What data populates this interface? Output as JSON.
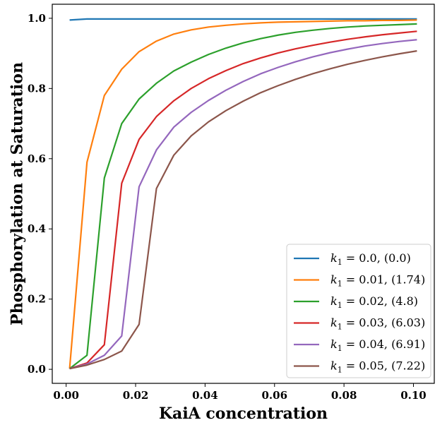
{
  "chart_data": {
    "type": "line",
    "title": "",
    "xlabel": "KaiA concentration",
    "ylabel": "Phosphorylation at Saturation",
    "xlim": [
      -0.004,
      0.106
    ],
    "ylim": [
      -0.04,
      1.04
    ],
    "xticks": [
      0.0,
      0.02,
      0.04,
      0.06,
      0.08,
      0.1
    ],
    "xtick_labels": [
      "0.00",
      "0.02",
      "0.04",
      "0.06",
      "0.08",
      "0.10"
    ],
    "yticks": [
      0.0,
      0.2,
      0.4,
      0.6,
      0.8,
      1.0
    ],
    "ytick_labels": [
      "0.0",
      "0.2",
      "0.4",
      "0.6",
      "0.8",
      "1.0"
    ],
    "grid": false,
    "legend_position": "bottom-right",
    "x": [
      0.001,
      0.006,
      0.011,
      0.016,
      0.021,
      0.026,
      0.031,
      0.036,
      0.041,
      0.046,
      0.051,
      0.056,
      0.061,
      0.066,
      0.071,
      0.076,
      0.081,
      0.086,
      0.091,
      0.096,
      0.101
    ],
    "series": [
      {
        "name": "k1 = 0.0, (0.0)",
        "legend_prefix": "k",
        "legend_sub": "1",
        "legend_rest": " = 0.0, (0.0)",
        "color": "#1f77b4",
        "values": [
          0.995,
          0.998,
          0.998,
          0.998,
          0.998,
          0.998,
          0.998,
          0.998,
          0.998,
          0.998,
          0.998,
          0.998,
          0.998,
          0.998,
          0.998,
          0.998,
          0.998,
          0.998,
          0.998,
          0.998,
          0.998
        ]
      },
      {
        "name": "k1 = 0.01, (1.74)",
        "legend_prefix": "k",
        "legend_sub": "1",
        "legend_rest": " = 0.01, (1.74)",
        "color": "#ff7f0e",
        "values": [
          0.002,
          0.59,
          0.78,
          0.855,
          0.905,
          0.935,
          0.955,
          0.967,
          0.975,
          0.98,
          0.984,
          0.987,
          0.989,
          0.99,
          0.991,
          0.992,
          0.993,
          0.993,
          0.994,
          0.994,
          0.995
        ]
      },
      {
        "name": "k1 = 0.02, (4.8)",
        "legend_prefix": "k",
        "legend_sub": "1",
        "legend_rest": " = 0.02, (4.8)",
        "color": "#2ca02c",
        "values": [
          0.002,
          0.04,
          0.545,
          0.7,
          0.77,
          0.815,
          0.85,
          0.875,
          0.897,
          0.915,
          0.93,
          0.942,
          0.952,
          0.96,
          0.966,
          0.971,
          0.975,
          0.978,
          0.98,
          0.982,
          0.984
        ]
      },
      {
        "name": "k1 = 0.03, (6.03)",
        "legend_prefix": "k",
        "legend_sub": "1",
        "legend_rest": " = 0.03, (6.03)",
        "color": "#d62728",
        "values": [
          0.002,
          0.018,
          0.07,
          0.53,
          0.655,
          0.72,
          0.765,
          0.8,
          0.828,
          0.851,
          0.871,
          0.887,
          0.901,
          0.913,
          0.923,
          0.932,
          0.94,
          0.947,
          0.953,
          0.958,
          0.963
        ]
      },
      {
        "name": "k1 = 0.04, (6.91)",
        "legend_prefix": "k",
        "legend_sub": "1",
        "legend_rest": " = 0.04, (6.91)",
        "color": "#9467bd",
        "values": [
          0.002,
          0.015,
          0.04,
          0.095,
          0.52,
          0.625,
          0.69,
          0.732,
          0.766,
          0.795,
          0.82,
          0.842,
          0.86,
          0.876,
          0.89,
          0.902,
          0.912,
          0.921,
          0.928,
          0.934,
          0.939
        ]
      },
      {
        "name": "k1 = 0.05, (7.22)",
        "legend_prefix": "k",
        "legend_sub": "1",
        "legend_rest": " = 0.05, (7.22)",
        "color": "#8c564b",
        "values": [
          0.002,
          0.012,
          0.028,
          0.052,
          0.128,
          0.515,
          0.61,
          0.665,
          0.705,
          0.737,
          0.764,
          0.788,
          0.808,
          0.826,
          0.842,
          0.856,
          0.869,
          0.88,
          0.89,
          0.899,
          0.907
        ]
      }
    ]
  }
}
